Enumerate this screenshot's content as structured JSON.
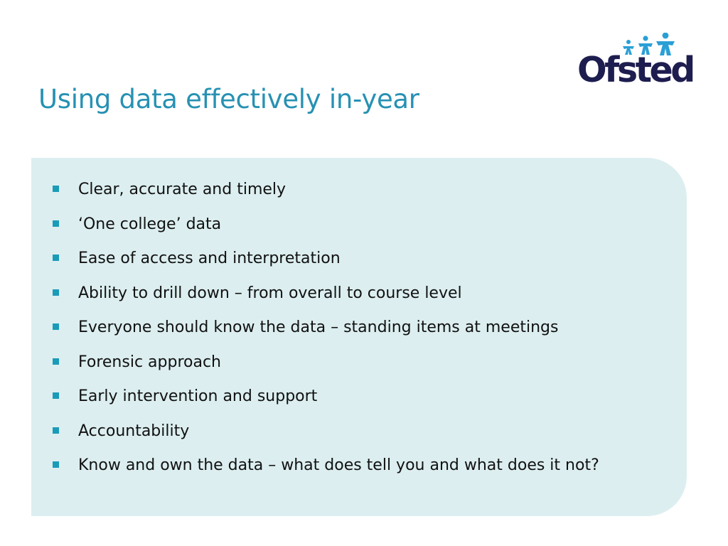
{
  "slide": {
    "title": "Using data effectively in-year",
    "logo_text": "Ofsted",
    "bullets": [
      "Clear, accurate and timely",
      "‘One college’ data",
      "Ease of access and interpretation",
      "Ability to drill down – from overall to course level",
      "Everyone should know the data – standing items at meetings",
      "Forensic approach",
      "Early intervention and support",
      "Accountability",
      "Know and own the data – what does tell you and what does it not?"
    ]
  },
  "colors": {
    "title": "#2791b3",
    "panel": "#dceef0",
    "bullet_marker": "#1a9bb8",
    "logo_text": "#1e1d4f",
    "logo_stars": "#2a9fd6"
  },
  "icons": {
    "bullet_marker": "square-bullet-icon",
    "logo": "ofsted-logo"
  }
}
